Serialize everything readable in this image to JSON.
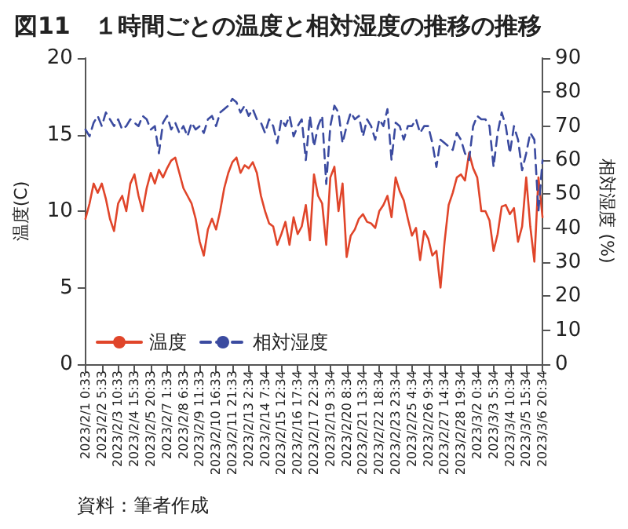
{
  "chart_data": {
    "type": "line",
    "title": "図11　１時間ごとの温度と相対湿度の推移の推移",
    "ylabel": "温度(C)",
    "y2label": "相対湿度 (%)",
    "annotations": [
      "資料：筆者作成"
    ],
    "categories": [
      "2023/2/1 0:33",
      null,
      null,
      null,
      "2023/2/2 5:33",
      null,
      null,
      null,
      "2023/2/3 10:33",
      null,
      null,
      null,
      "2023/2/4 15:33",
      null,
      null,
      null,
      "2023/2/5 20:33",
      null,
      null,
      null,
      "2023/2/7 1:33",
      null,
      null,
      null,
      "2023/2/8 6:33",
      null,
      null,
      null,
      "2023/2/9 11:33",
      null,
      null,
      null,
      "2023/2/10 16:33",
      null,
      null,
      null,
      "2023/2/11 21:33",
      null,
      null,
      null,
      "2023/2/13 2:34",
      null,
      null,
      null,
      "2023/2/14 7:34",
      null,
      null,
      null,
      "2023/2/15 12:34",
      null,
      null,
      null,
      "2023/2/16 17:34",
      null,
      null,
      null,
      "2023/2/17 22:34",
      null,
      null,
      null,
      "2023/2/19 3:34",
      null,
      null,
      null,
      "2023/2/20 8:34",
      null,
      null,
      null,
      "2023/2/21 13:34",
      null,
      null,
      null,
      "2023/2/22 18:34",
      null,
      null,
      null,
      "2023/2/23 23:34",
      null,
      null,
      null,
      "2023/2/25 4:34",
      null,
      null,
      null,
      "2023/2/26 9:34",
      null,
      null,
      null,
      "2023/2/27 14:34",
      null,
      null,
      null,
      "2023/2/28 19:34",
      null,
      null,
      null,
      "2023/3/2 0:34",
      null,
      null,
      null,
      "2023/3/3 5:34",
      null,
      null,
      null,
      "2023/3/4 10:34",
      null,
      null,
      null,
      "2023/3/5 15:34",
      null,
      null,
      null,
      "2023/3/6 20:34"
    ],
    "series": [
      {
        "name": "温度",
        "color": "#e0452a",
        "line_style": "solid",
        "values": [
          9.5,
          10.5,
          11.8,
          11.2,
          11.8,
          10.8,
          9.5,
          8.7,
          10.5,
          11,
          10,
          11.8,
          12.4,
          11,
          10,
          11.5,
          12.5,
          11.8,
          12.7,
          12.2,
          12.8,
          13.3,
          13.5,
          12.5,
          11.5,
          11,
          10.5,
          9.5,
          8,
          7.1,
          8.8,
          9.5,
          8.8,
          10,
          11.5,
          12.5,
          13.2,
          13.5,
          12.5,
          13,
          12.8,
          13.2,
          12.5,
          11,
          10,
          9.2,
          9,
          7.8,
          8.5,
          9.3,
          7.8,
          9.6,
          8.5,
          9,
          10.4,
          8.1,
          12.4,
          11,
          10.5,
          7.8,
          12.2,
          12.9,
          10,
          11.8,
          7,
          8.4,
          8.8,
          9.5,
          9.8,
          9.3,
          9.2,
          8.9,
          10,
          10.4,
          11,
          9.6,
          12.2,
          11.3,
          10.7,
          9.5,
          8.4,
          8.9,
          6.8,
          8.7,
          8.2,
          7.1,
          7.4,
          5,
          8,
          10.4,
          11.2,
          12.2,
          12.4,
          12,
          13.8,
          12.8,
          12.2,
          10,
          10,
          9.4,
          7.4,
          8.5,
          10.3,
          10.4,
          9.8,
          10.2,
          8,
          9,
          12.2,
          9,
          6.7,
          12.2,
          9.6
        ]
      },
      {
        "name": "相対湿度",
        "color": "#3b4ba0",
        "axis": "y2",
        "line_style": "dashed",
        "values": [
          69,
          67,
          71,
          73,
          70,
          74,
          72,
          70,
          72,
          69,
          70,
          72,
          71,
          70,
          73,
          72,
          69,
          70,
          62,
          71,
          73,
          69,
          71,
          68,
          70,
          67,
          71,
          69,
          70,
          68,
          72,
          73,
          70,
          74,
          75,
          76,
          78,
          77,
          74,
          76,
          73,
          75,
          72,
          71,
          68,
          72,
          70,
          65,
          72,
          70,
          73,
          67,
          70,
          72,
          60,
          73,
          64,
          70,
          73,
          53,
          70,
          76,
          74,
          65,
          70,
          74,
          72,
          73,
          67,
          72,
          70,
          66,
          72,
          70,
          75,
          60,
          71,
          70,
          66,
          70,
          70,
          72,
          68,
          70,
          70,
          65,
          58,
          66,
          65,
          64,
          63,
          68,
          66,
          62,
          60,
          70,
          73,
          72,
          72,
          70,
          58,
          68,
          74,
          70,
          62,
          70,
          66,
          57,
          62,
          68,
          66,
          45,
          60
        ]
      }
    ],
    "ylim": [
      0,
      20
    ],
    "yticks": [
      0,
      5,
      10,
      15,
      20
    ],
    "y2lim": [
      0,
      90
    ],
    "y2ticks": [
      0,
      10,
      20,
      30,
      40,
      50,
      60,
      70,
      80,
      90
    ],
    "grid": false,
    "legend": "bottom left",
    "marker": "none"
  }
}
